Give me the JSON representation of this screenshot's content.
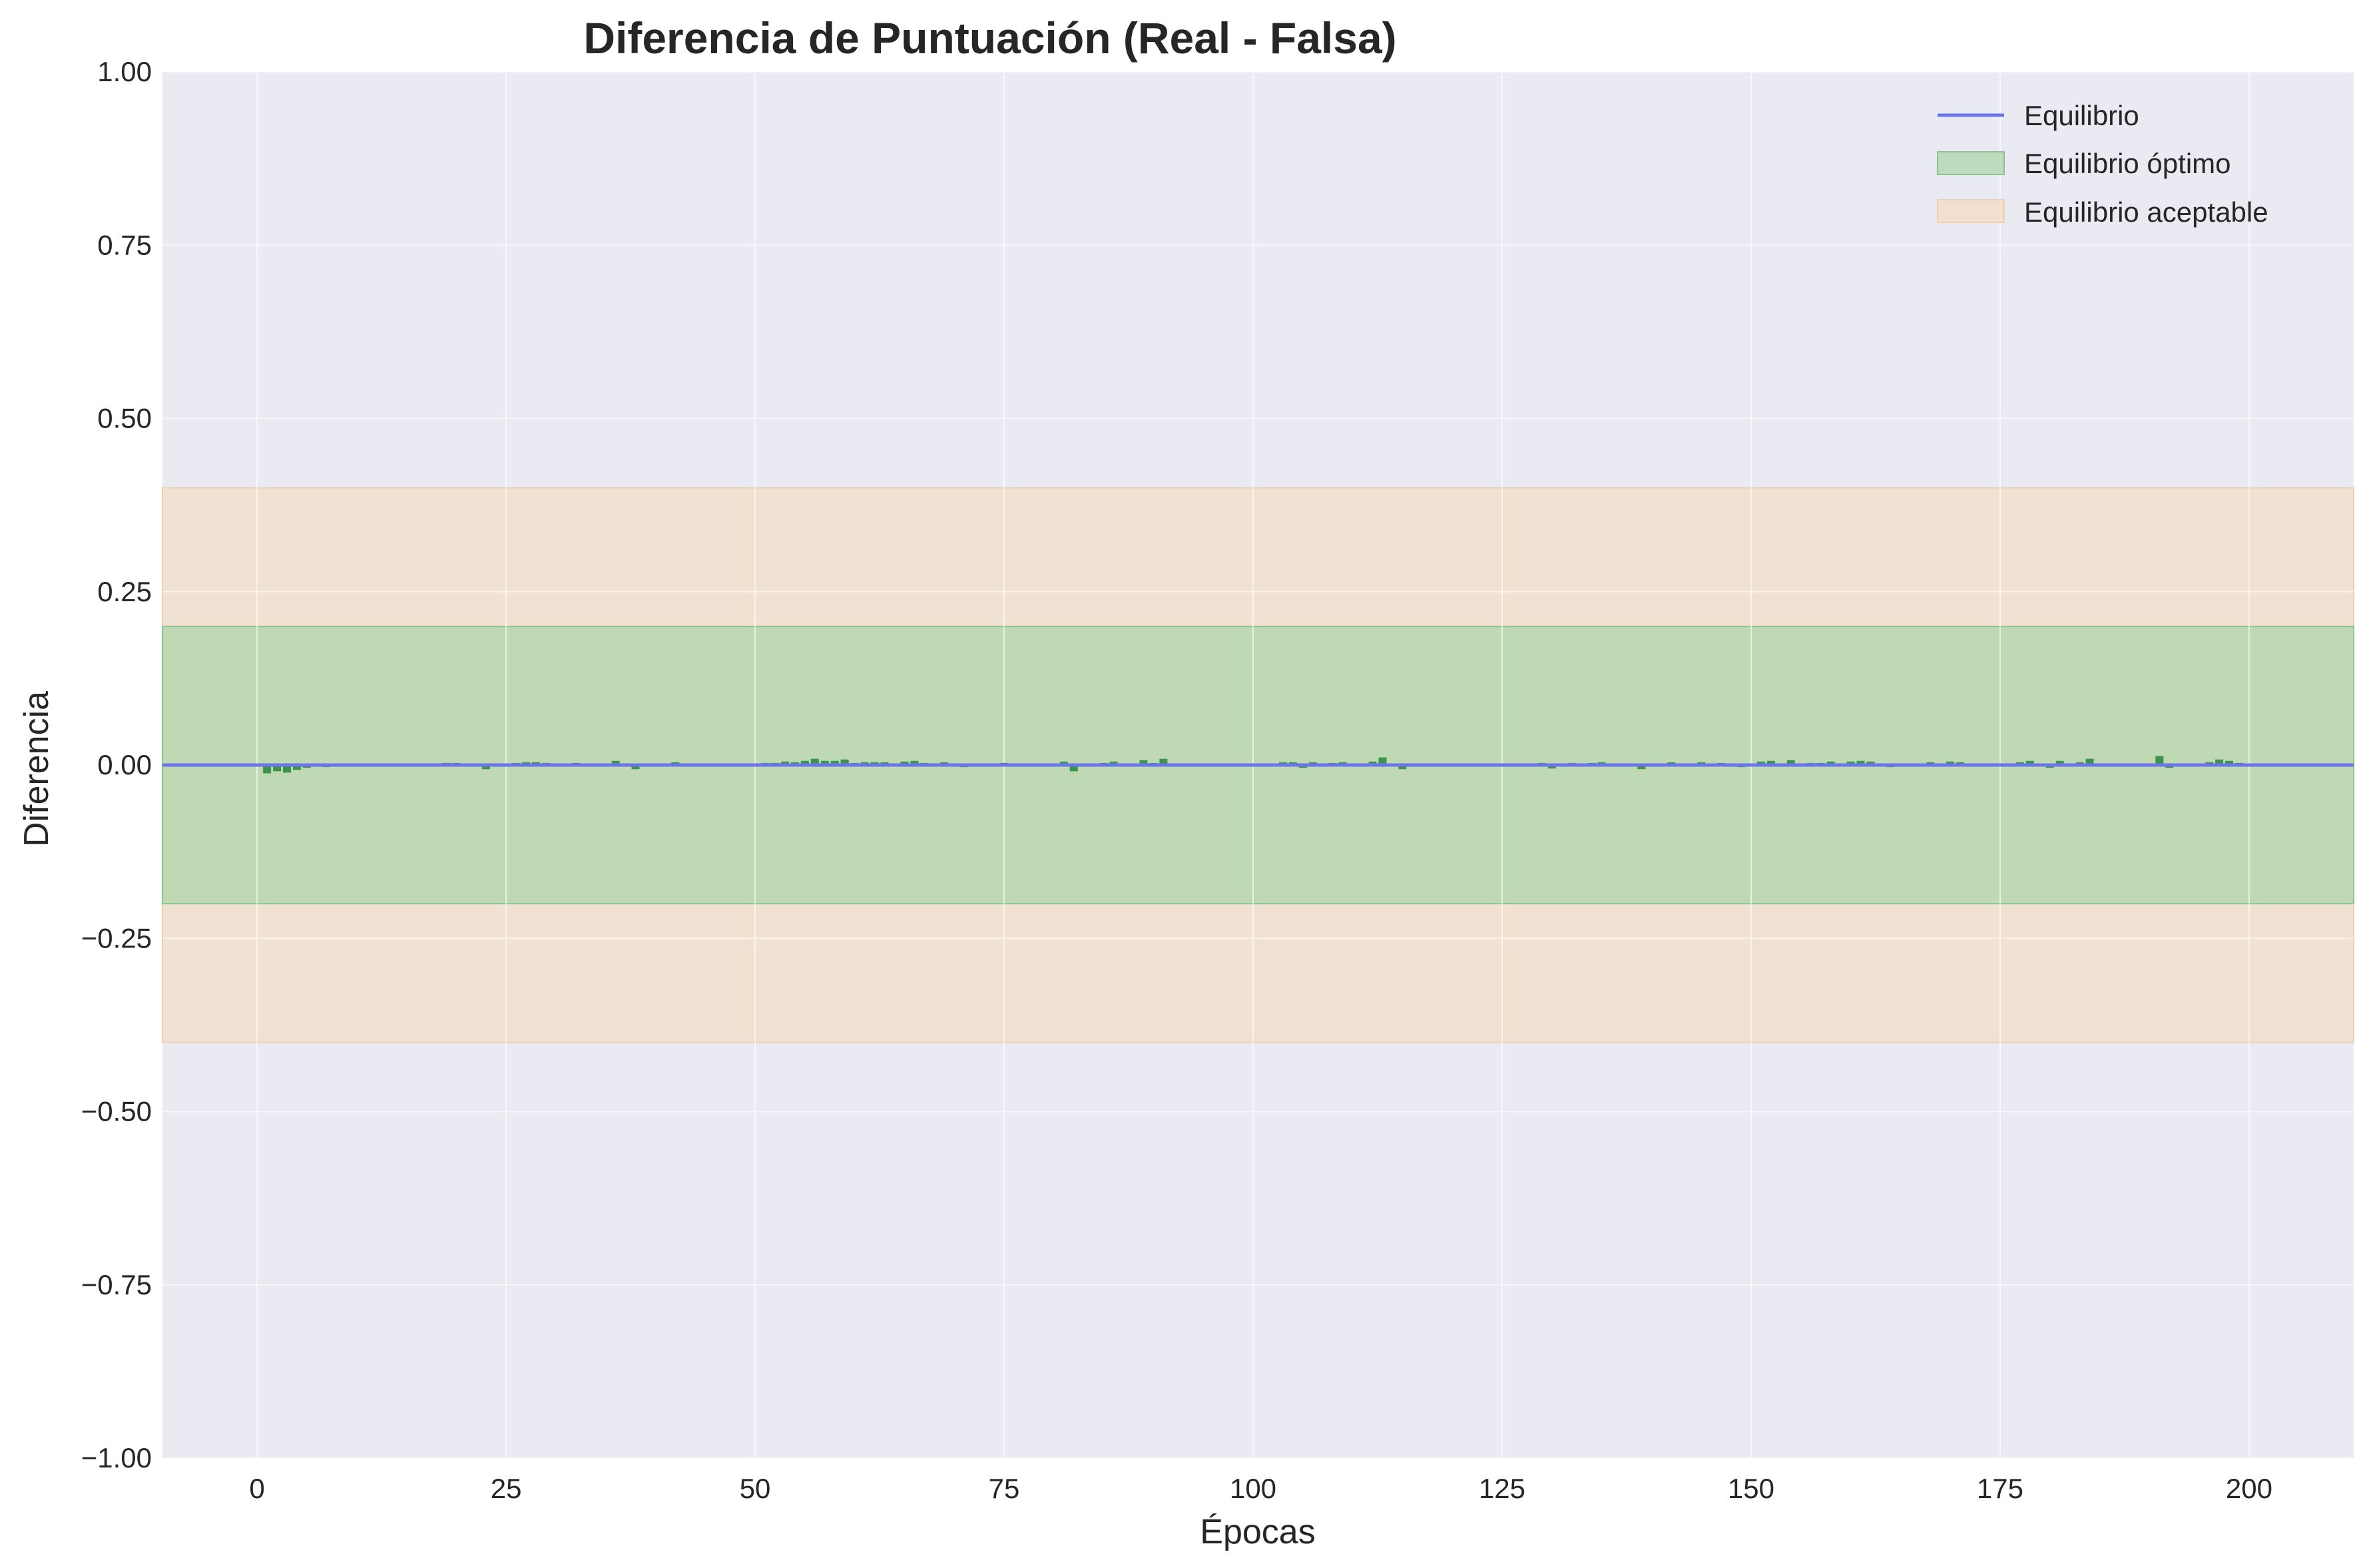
{
  "chart_data": {
    "type": "bar",
    "title": "Diferencia de Puntuación (Real - Falsa)",
    "xlabel": "Épocas",
    "ylabel": "Diferencia",
    "xlim": [
      -9.5,
      210.5
    ],
    "ylim": [
      -1.0,
      1.0
    ],
    "xticks": [
      0,
      25,
      50,
      75,
      100,
      125,
      150,
      175,
      200
    ],
    "yticks": [
      -1.0,
      -0.75,
      -0.5,
      -0.25,
      0.0,
      0.25,
      0.5,
      0.75,
      1.0
    ],
    "xtick_labels": [
      "0",
      "25",
      "50",
      "75",
      "100",
      "125",
      "150",
      "175",
      "200"
    ],
    "ytick_labels": [
      "−1.00",
      "−0.75",
      "−0.50",
      "−0.25",
      "0.00",
      "0.25",
      "0.50",
      "0.75",
      "1.00"
    ],
    "grid": true,
    "legend_position": "top-right",
    "bar_color": "#2e8b3e",
    "equilibrium_line": {
      "name": "Equilibrio",
      "y": 0.0,
      "color": "#6b74e8"
    },
    "bands": [
      {
        "name": "Equilibrio aceptable",
        "ymin": -0.4,
        "ymax": 0.4,
        "color": "#f5d9b8"
      },
      {
        "name": "Equilibrio óptimo",
        "ymin": -0.2,
        "ymax": 0.2,
        "color": "#a9d6a6"
      }
    ],
    "legend": [
      "Equilibrio",
      "Equilibrio óptimo",
      "Equilibrio aceptable"
    ],
    "series": [
      {
        "x": [
          1,
          2,
          3,
          4,
          5,
          6,
          7,
          8,
          9,
          10,
          11,
          12,
          13,
          14,
          15,
          16,
          17,
          18,
          19,
          20,
          21,
          22,
          23,
          24,
          25,
          26,
          27,
          28,
          29,
          30,
          31,
          32,
          33,
          34,
          35,
          36,
          37,
          38,
          39,
          40,
          41,
          42,
          43,
          44,
          45,
          46,
          47,
          48,
          49,
          50,
          51,
          52,
          53,
          54,
          55,
          56,
          57,
          58,
          59,
          60,
          61,
          62,
          63,
          64,
          65,
          66,
          67,
          68,
          69,
          70,
          71,
          72,
          73,
          74,
          75,
          76,
          77,
          78,
          79,
          80,
          81,
          82,
          83,
          84,
          85,
          86,
          87,
          88,
          89,
          90,
          91,
          92,
          93,
          94,
          95,
          96,
          97,
          98,
          99,
          100,
          101,
          102,
          103,
          104,
          105,
          106,
          107,
          108,
          109,
          110,
          111,
          112,
          113,
          114,
          115,
          116,
          117,
          118,
          119,
          120,
          121,
          122,
          123,
          124,
          125,
          126,
          127,
          128,
          129,
          130,
          131,
          132,
          133,
          134,
          135,
          136,
          137,
          138,
          139,
          140,
          141,
          142,
          143,
          144,
          145,
          146,
          147,
          148,
          149,
          150,
          151,
          152,
          153,
          154,
          155,
          156,
          157,
          158,
          159,
          160,
          161,
          162,
          163,
          164,
          165,
          166,
          167,
          168,
          169,
          170,
          171,
          172,
          173,
          174,
          175,
          176,
          177,
          178,
          179,
          180,
          181,
          182,
          183,
          184,
          185,
          186,
          187,
          188,
          189,
          190,
          191,
          192,
          193,
          194,
          195,
          196,
          197,
          198,
          199,
          200
        ],
        "values": [
          -0.012,
          -0.009,
          -0.011,
          -0.007,
          -0.004,
          -0.002,
          -0.003,
          -0.001,
          -0.002,
          0.001,
          -0.002,
          0.001,
          -0.001,
          0.002,
          0.001,
          0.001,
          0.001,
          0.002,
          0.003,
          0.003,
          0.002,
          0.001,
          -0.006,
          0.002,
          0.002,
          0.003,
          0.004,
          0.004,
          0.003,
          0.002,
          0.001,
          0.003,
          0.002,
          0.001,
          0.002,
          0.006,
          0.002,
          -0.006,
          -0.001,
          0.001,
          0.002,
          0.004,
          0.002,
          0.001,
          0.002,
          0.001,
          0.001,
          0.002,
          0.001,
          -0.002,
          0.003,
          0.003,
          0.005,
          0.004,
          0.006,
          0.009,
          0.006,
          0.006,
          0.008,
          0.003,
          0.004,
          0.004,
          0.004,
          0.002,
          0.005,
          0.006,
          0.003,
          0.002,
          0.004,
          0.002,
          -0.003,
          0.001,
          0.002,
          0.002,
          0.003,
          0.001,
          0.001,
          -0.002,
          0.002,
          0.001,
          0.005,
          -0.009,
          0.001,
          0.002,
          0.003,
          0.005,
          0.002,
          0.002,
          0.007,
          0.003,
          0.009,
          0.002,
          0.001,
          0.002,
          0.001,
          0.001,
          0.001,
          0.001,
          0.002,
          0.001,
          -0.002,
          0.001,
          0.004,
          0.004,
          -0.004,
          0.004,
          0.002,
          0.003,
          0.004,
          0.001,
          0.001,
          0.005,
          0.011,
          0.002,
          -0.006,
          0.002,
          0.002,
          0.001,
          0.001,
          0.001,
          0.002,
          0.002,
          0.002,
          0.001,
          0.001,
          0.002,
          0.001,
          0.002,
          0.003,
          -0.005,
          0.002,
          0.003,
          0.002,
          0.003,
          0.004,
          0.002,
          -0.002,
          0.002,
          -0.006,
          0.002,
          0.002,
          0.004,
          0.002,
          0.001,
          0.004,
          0.002,
          0.003,
          0.002,
          -0.003,
          0.002,
          0.005,
          0.006,
          0.002,
          0.007,
          0.002,
          0.003,
          0.003,
          0.005,
          0.002,
          0.005,
          0.006,
          0.005,
          0.002,
          -0.003,
          0.001,
          0.002,
          0.001,
          0.004,
          0.002,
          0.005,
          0.004,
          0.002,
          0.002,
          -0.002,
          0.001,
          0.002,
          0.004,
          0.006,
          0.002,
          -0.004,
          0.006,
          0.002,
          0.004,
          0.009,
          0.002,
          0.001,
          0.002,
          0.002,
          0.002,
          0.001,
          0.013,
          -0.004,
          0.001,
          0.001,
          0.002,
          0.004,
          0.008,
          0.006,
          0.003,
          0.002
        ]
      }
    ]
  }
}
